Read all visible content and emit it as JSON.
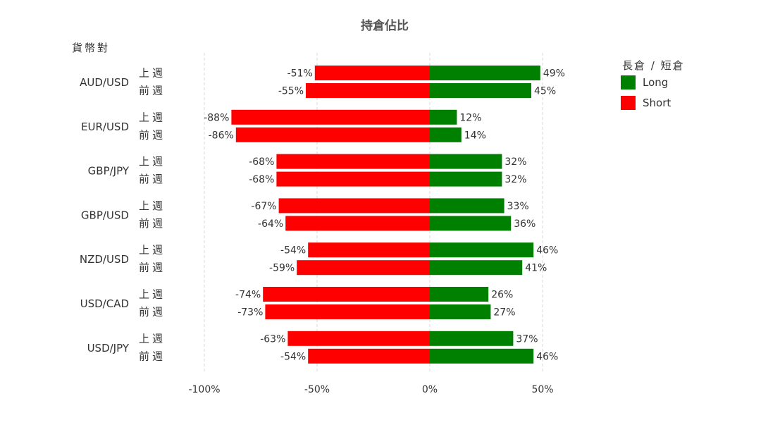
{
  "chart_data": {
    "type": "bar",
    "orientation": "horizontal",
    "stacked": "diverging",
    "title": "持倉佔比",
    "ylabel": "貨幣對",
    "xlim": [
      -100,
      50
    ],
    "x_ticks": [
      -100,
      -50,
      0,
      50
    ],
    "x_tick_labels": [
      "-100%",
      "-50%",
      "0%",
      "50%"
    ],
    "grid": "vertical-dashed",
    "legend_position": "top-right",
    "legend_title": "長倉 / 短倉",
    "colors": {
      "Long": "#008000",
      "Short": "#ff0000"
    },
    "groups": [
      {
        "pair": "AUD/USD",
        "rows": [
          {
            "period": "上週",
            "short": -51,
            "long": 49,
            "short_label": "-51%",
            "long_label": "49%"
          },
          {
            "period": "前週",
            "short": -55,
            "long": 45,
            "short_label": "-55%",
            "long_label": "45%"
          }
        ]
      },
      {
        "pair": "EUR/USD",
        "rows": [
          {
            "period": "上週",
            "short": -88,
            "long": 12,
            "short_label": "-88%",
            "long_label": "12%"
          },
          {
            "period": "前週",
            "short": -86,
            "long": 14,
            "short_label": "-86%",
            "long_label": "14%"
          }
        ]
      },
      {
        "pair": "GBP/JPY",
        "rows": [
          {
            "period": "上週",
            "short": -68,
            "long": 32,
            "short_label": "-68%",
            "long_label": "32%"
          },
          {
            "period": "前週",
            "short": -68,
            "long": 32,
            "short_label": "-68%",
            "long_label": "32%"
          }
        ]
      },
      {
        "pair": "GBP/USD",
        "rows": [
          {
            "period": "上週",
            "short": -67,
            "long": 33,
            "short_label": "-67%",
            "long_label": "33%"
          },
          {
            "period": "前週",
            "short": -64,
            "long": 36,
            "short_label": "-64%",
            "long_label": "36%"
          }
        ]
      },
      {
        "pair": "NZD/USD",
        "rows": [
          {
            "period": "上週",
            "short": -54,
            "long": 46,
            "short_label": "-54%",
            "long_label": "46%"
          },
          {
            "period": "前週",
            "short": -59,
            "long": 41,
            "short_label": "-59%",
            "long_label": "41%"
          }
        ]
      },
      {
        "pair": "USD/CAD",
        "rows": [
          {
            "period": "上週",
            "short": -74,
            "long": 26,
            "short_label": "-74%",
            "long_label": "26%"
          },
          {
            "period": "前週",
            "short": -73,
            "long": 27,
            "short_label": "-73%",
            "long_label": "27%"
          }
        ]
      },
      {
        "pair": "USD/JPY",
        "rows": [
          {
            "period": "上週",
            "short": -63,
            "long": 37,
            "short_label": "-63%",
            "long_label": "37%"
          },
          {
            "period": "前週",
            "short": -54,
            "long": 46,
            "short_label": "-54%",
            "long_label": "46%"
          }
        ]
      }
    ],
    "series": [
      {
        "name": "Long",
        "color": "#008000"
      },
      {
        "name": "Short",
        "color": "#ff0000"
      }
    ]
  }
}
